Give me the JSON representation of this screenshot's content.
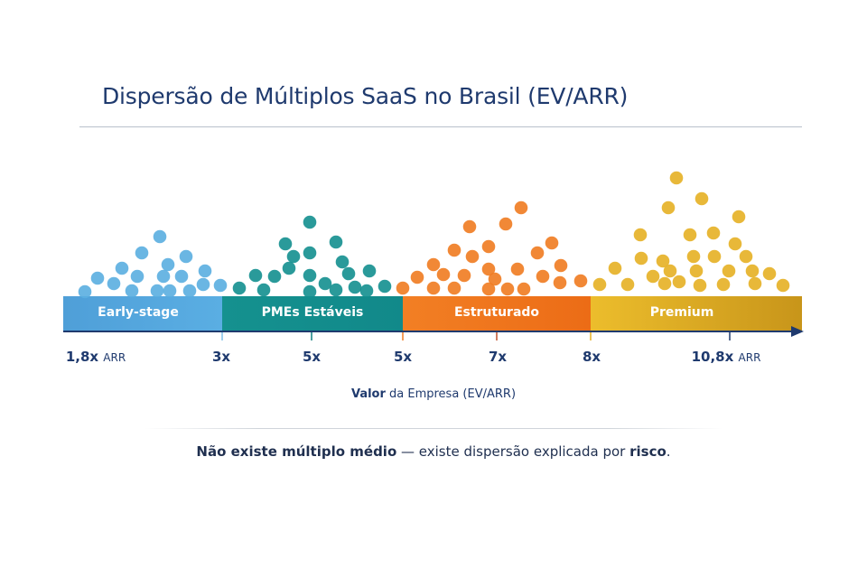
{
  "title": "Dispersão de Múltiplos SaaS no Brasil (EV/ARR)",
  "segments": [
    {
      "label": "Early-stage",
      "color_start": "#4f9fd8",
      "color_end": "#5aaee3",
      "dot_color": "#5aaee0"
    },
    {
      "label": "PMEs Estáveis",
      "color_start": "#15918f",
      "color_end": "#11898a",
      "dot_color": "#138f8f"
    },
    {
      "label": "Estruturado",
      "color_start": "#f27f24",
      "color_end": "#ec6c16",
      "dot_color": "#f07b20"
    },
    {
      "label": "Premium",
      "color_start": "#ecbd2c",
      "color_end": "#c8951a",
      "dot_color": "#e5b023"
    }
  ],
  "ticks": [
    {
      "value": "1,8x",
      "unit": "ARR"
    },
    {
      "value": "3x",
      "unit": ""
    },
    {
      "value": "5x",
      "unit": ""
    },
    {
      "value": "5x",
      "unit": ""
    },
    {
      "value": "7x",
      "unit": ""
    },
    {
      "value": "8x",
      "unit": ""
    },
    {
      "value": "10,8x",
      "unit": "ARR"
    }
  ],
  "axis_title": {
    "bold": "Valor",
    "rest": " da Empresa (EV/ARR)"
  },
  "caption": {
    "part1": "Não existe múltiplo médio",
    "part2": " — existe dispersão explicada por ",
    "part3": "risco",
    "part4": "."
  },
  "colors": {
    "text": "#1f3a6e",
    "axis": "#1f3a6e"
  }
}
